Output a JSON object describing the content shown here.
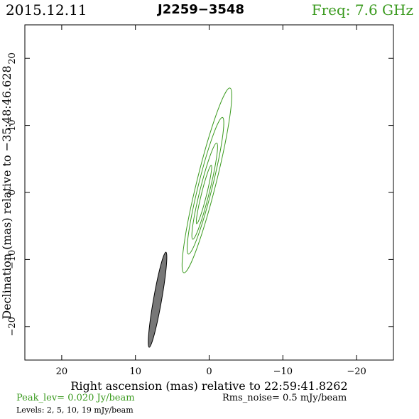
{
  "header": {
    "date": "2015.12.11",
    "source": "J2259−3548",
    "freq": "Freq: 7.6 GHz"
  },
  "colors": {
    "map_contours": "#3a9a1e",
    "beam": "#777777",
    "frame": "#000000"
  },
  "chart_data": {
    "type": "contour",
    "xlabel": "Right ascension (mas) relative to 22:59:41.8262",
    "ylabel": "Declination (mas) relative to −35:48:46.628",
    "xlim": [
      25,
      -25
    ],
    "ylim": [
      -25,
      25
    ],
    "x_ticks": [
      20,
      10,
      0,
      -10,
      -20
    ],
    "x_tick_labels": [
      "20",
      "10",
      "0",
      "−10",
      "−20"
    ],
    "y_ticks": [
      20,
      10,
      0,
      -10,
      -20
    ],
    "y_tick_labels": [
      "20",
      "10",
      "0",
      "−10",
      "−20"
    ],
    "contour_levels_mJy": [
      2,
      5,
      10,
      19
    ],
    "contours": [
      {
        "level": 2,
        "center": [
          0.3,
          1.8
        ],
        "semi_major": 14.2,
        "semi_minor": 1.3,
        "pa_deg": 14
      },
      {
        "level": 5,
        "center": [
          0.5,
          1.0
        ],
        "semi_major": 10.5,
        "semi_minor": 0.95,
        "pa_deg": 14
      },
      {
        "level": 10,
        "center": [
          0.6,
          0.2
        ],
        "semi_major": 7.4,
        "semi_minor": 0.65,
        "pa_deg": 14
      },
      {
        "level": 19,
        "center": [
          0.7,
          -0.3
        ],
        "semi_major": 4.5,
        "semi_minor": 0.35,
        "pa_deg": 14
      }
    ],
    "beam": {
      "center": [
        7.0,
        -16.0
      ],
      "semi_major": 7.2,
      "semi_minor": 0.55,
      "pa_deg": 10
    }
  },
  "footer": {
    "peak": "Peak_lev=  0.020 Jy/beam",
    "rms": "Rms_noise=  0.5 mJy/beam",
    "levels": "Levels:   2,   5,  10,  19 mJy/beam"
  }
}
